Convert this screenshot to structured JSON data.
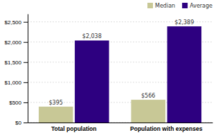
{
  "chart_data": {
    "type": "bar",
    "categories": [
      "Total population",
      "Population with expenses"
    ],
    "series": [
      {
        "name": "Median",
        "color": "#c8c896",
        "values": [
          395,
          566
        ],
        "value_labels": [
          "$395",
          "$566"
        ]
      },
      {
        "name": "Average",
        "color": "#2d0080",
        "values": [
          2038,
          2389
        ],
        "value_labels": [
          "$2,038",
          "$2,389"
        ]
      }
    ],
    "ylim": [
      0,
      2700
    ],
    "yticks": [
      {
        "value": 0,
        "label": "$0"
      },
      {
        "value": 500,
        "label": "$500"
      },
      {
        "value": 1000,
        "label": "$1,000"
      },
      {
        "value": 1500,
        "label": "$1,500"
      },
      {
        "value": 2000,
        "label": "$2,000"
      },
      {
        "value": 2500,
        "label": "$2,500"
      }
    ],
    "grid": true,
    "legend": "upper right",
    "data_labels": true
  }
}
